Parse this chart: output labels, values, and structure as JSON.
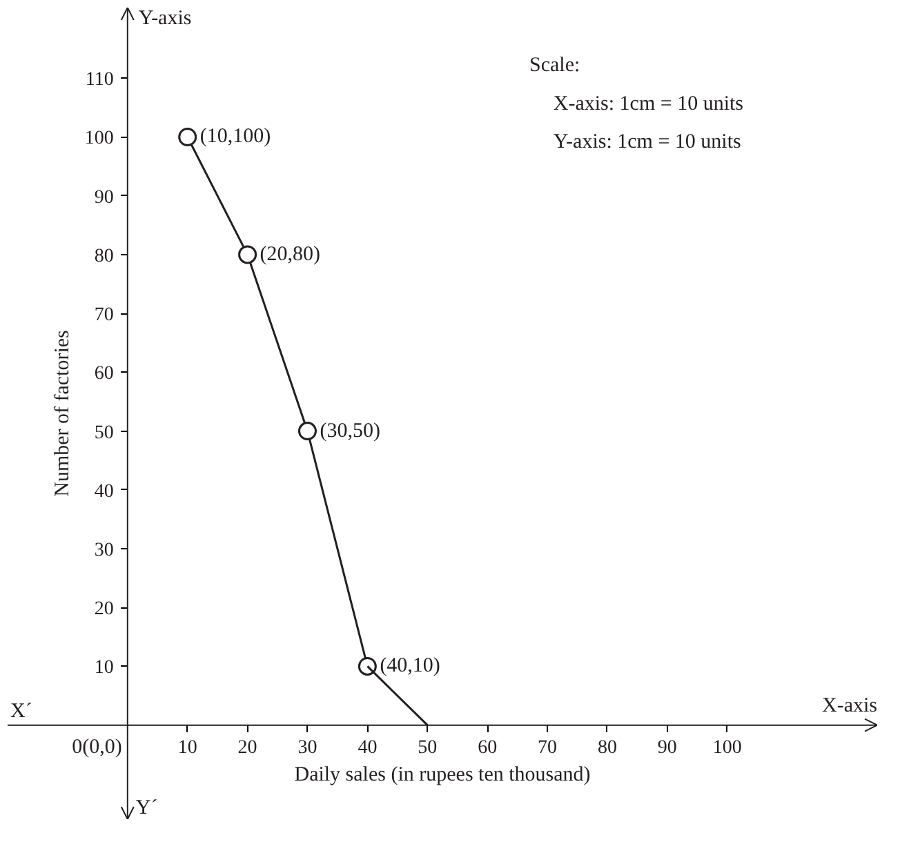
{
  "chart_data": {
    "type": "line",
    "xlabel": "Daily sales (in rupees ten thousand)",
    "ylabel": "Number of factories",
    "series": [
      {
        "color": "#231f20",
        "x": [
          10,
          20,
          30,
          40
        ],
        "values": [
          100,
          80,
          50,
          10
        ],
        "marker": "circle"
      },
      {
        "color": "#231f20",
        "x": [
          40,
          50
        ],
        "values": [
          10,
          0
        ],
        "marker": "none"
      }
    ],
    "xlim": [
      -20,
      125
    ],
    "ylim": [
      -16,
      122
    ],
    "xticks": [
      10,
      20,
      30,
      40,
      50,
      60,
      70,
      80,
      90,
      100
    ],
    "yticks": [
      10,
      20,
      30,
      40,
      50,
      60,
      70,
      80,
      90,
      100,
      110
    ],
    "grid": false,
    "line_style": "solid",
    "annotations": [
      "Scale:",
      "X-axis: 1cm = 10 units",
      "Y-axis: 1cm = 10 units",
      "X´",
      "Y´",
      "X-axis",
      "Y-axis",
      "0(0,0)",
      {
        "text": "(10,100)",
        "x": 10,
        "y": 100
      },
      {
        "text": "(20,80)",
        "x": 20,
        "y": 80
      },
      {
        "text": "(30,50)",
        "x": 30,
        "y": 50
      },
      {
        "text": "(40,10)",
        "x": 40,
        "y": 10
      }
    ]
  }
}
